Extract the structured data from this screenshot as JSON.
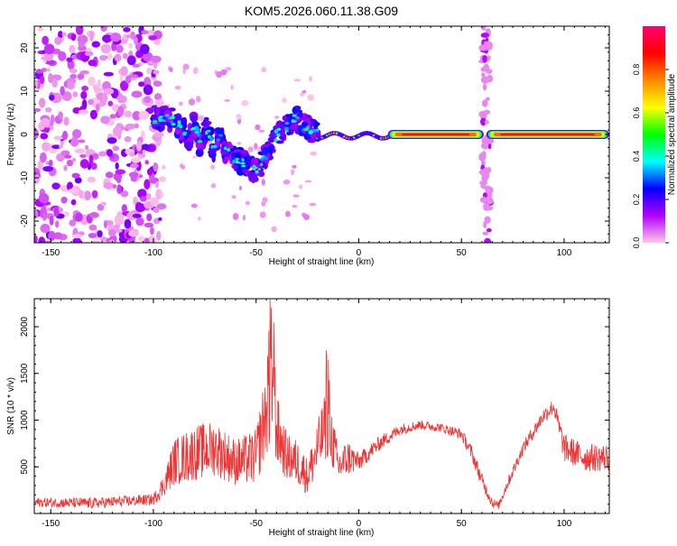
{
  "title": "KOM5.2026.060.11.38.G09",
  "chart_data": [
    {
      "type": "heatmap",
      "title": "KOM5.2026.060.11.38.G09",
      "xlabel": "Height of straight line (km)",
      "ylabel": "Frequency (Hz)",
      "xlim": [
        -158,
        122
      ],
      "ylim": [
        -25,
        25
      ],
      "xticks": [
        -150,
        -100,
        -50,
        0,
        50,
        100
      ],
      "yticks": [
        -20,
        -10,
        0,
        10,
        20
      ],
      "colorbar": {
        "label": "Normalized spectral amplitude",
        "range": [
          0,
          1
        ],
        "ticks": [
          "0.0",
          "0.2",
          "0.4",
          "0.6",
          "0.8"
        ],
        "colors": [
          "#ffc8e8",
          "#b400ff",
          "#0000ff",
          "#00ffff",
          "#00ff00",
          "#ffff00",
          "#ff8800",
          "#ff0000",
          "#ff0070"
        ]
      },
      "features": [
        {
          "name": "noise-region",
          "x_range": [
            -158,
            -100
          ],
          "freq_range": [
            -25,
            25
          ],
          "amplitude": 0.1
        },
        {
          "name": "echo-scatter",
          "x_range": [
            -100,
            -20
          ],
          "freq_range": [
            -13,
            7
          ],
          "amplitude": 0.3
        },
        {
          "name": "weak-line",
          "x_range": [
            -20,
            15
          ],
          "freq_range": [
            -1,
            1
          ],
          "amplitude": 0.5
        },
        {
          "name": "strong-line",
          "x_range": [
            15,
            122
          ],
          "freq": 0,
          "amplitude": 0.95
        },
        {
          "name": "vertical-band",
          "x": 62,
          "freq_range": [
            -25,
            25
          ],
          "amplitude": 0.1
        }
      ]
    },
    {
      "type": "line",
      "xlabel": "Height of straight line (km)",
      "ylabel": "SNR (10 * v/v)",
      "xlim": [
        -158,
        122
      ],
      "ylim": [
        0,
        2300
      ],
      "xticks": [
        -150,
        -100,
        -50,
        0,
        50,
        100
      ],
      "yticks": [
        500,
        1000,
        1500,
        2000
      ],
      "series": [
        {
          "name": "SNR",
          "color": "#ee3333",
          "envelope_x": [
            -158,
            -130,
            -100,
            -95,
            -90,
            -80,
            -70,
            -60,
            -50,
            -45,
            -42,
            -40,
            -35,
            -30,
            -25,
            -20,
            -15,
            -10,
            -5,
            0,
            10,
            20,
            30,
            40,
            50,
            55,
            60,
            65,
            68,
            72,
            80,
            90,
            95,
            100,
            105,
            110,
            122
          ],
          "envelope_y": [
            120,
            110,
            150,
            300,
            550,
            650,
            700,
            550,
            600,
            1100,
            1500,
            900,
            600,
            550,
            400,
            700,
            1000,
            500,
            600,
            550,
            750,
            900,
            950,
            920,
            850,
            650,
            350,
            120,
            80,
            300,
            700,
            1050,
            1150,
            700,
            650,
            600,
            600
          ],
          "jitter": [
            50,
            60,
            60,
            120,
            250,
            300,
            300,
            250,
            300,
            500,
            700,
            400,
            250,
            250,
            200,
            300,
            400,
            200,
            200,
            100,
            80,
            60,
            50,
            50,
            60,
            80,
            80,
            60,
            40,
            60,
            70,
            80,
            90,
            150,
            150,
            150,
            150
          ]
        }
      ]
    }
  ]
}
